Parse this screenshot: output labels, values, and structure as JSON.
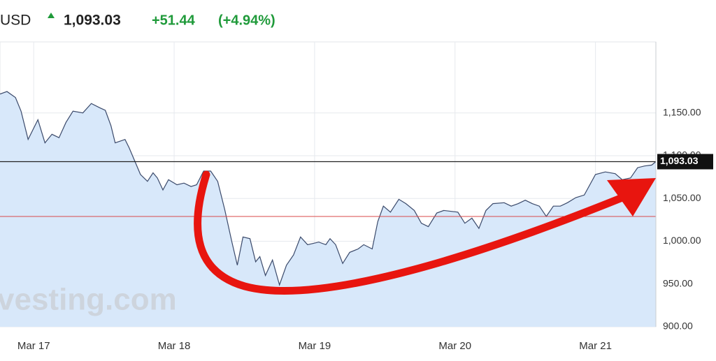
{
  "chart_data": {
    "type": "area",
    "title": "USD",
    "price": "1,093.03",
    "change": "+51.44",
    "change_pct": "(+4.94%)",
    "watermark": "vesting.com",
    "color": "#3b4a6b",
    "fill": "#d8e8fa",
    "x": [
      16.76,
      16.81,
      16.87,
      16.91,
      16.96,
      17.03,
      17.08,
      17.13,
      17.18,
      17.23,
      17.28,
      17.35,
      17.41,
      17.47,
      17.51,
      17.55,
      17.58,
      17.65,
      17.68,
      17.76,
      17.81,
      17.85,
      17.88,
      17.92,
      17.96,
      18.02,
      18.07,
      18.12,
      18.16,
      18.21,
      18.26,
      18.31,
      18.36,
      18.41,
      18.45,
      18.49,
      18.54,
      18.58,
      18.61,
      18.65,
      18.7,
      18.75,
      18.8,
      18.85,
      18.9,
      18.95,
      19.03,
      19.08,
      19.11,
      19.15,
      19.2,
      19.25,
      19.31,
      19.35,
      19.41,
      19.45,
      19.49,
      19.54,
      19.6,
      19.65,
      19.71,
      19.76,
      19.81,
      19.87,
      19.92,
      20.02,
      20.07,
      20.12,
      20.17,
      20.22,
      20.27,
      20.35,
      20.4,
      20.45,
      20.5,
      20.55,
      20.6,
      20.65,
      20.7,
      20.75,
      20.8,
      20.86,
      20.92,
      21.0,
      21.07,
      21.14,
      21.19,
      21.25,
      21.3,
      21.35,
      21.4,
      21.43
    ],
    "values": [
      1172,
      1175,
      1168,
      1152,
      1119,
      1142,
      1115,
      1125,
      1121,
      1139,
      1152,
      1150,
      1161,
      1156,
      1153,
      1135,
      1115,
      1119,
      1109,
      1078,
      1070,
      1080,
      1074,
      1060,
      1072,
      1066,
      1068,
      1064,
      1066,
      1082,
      1082,
      1070,
      1037,
      1000,
      972,
      1005,
      1003,
      976,
      982,
      960,
      978,
      949,
      972,
      984,
      1005,
      996,
      999,
      996,
      1003,
      996,
      974,
      987,
      991,
      996,
      991,
      1023,
      1041,
      1034,
      1049,
      1044,
      1036,
      1021,
      1017,
      1033,
      1036,
      1034,
      1021,
      1027,
      1015,
      1036,
      1044,
      1045,
      1041,
      1044,
      1048,
      1044,
      1041,
      1029,
      1041,
      1041,
      1045,
      1051,
      1054,
      1078,
      1081,
      1079,
      1072,
      1074,
      1086,
      1088,
      1089,
      1093.03
    ],
    "last_price": {
      "value": 1093.03,
      "label": "1,093.03"
    },
    "reference_line": 1029,
    "xlim": [
      16.76,
      21.43
    ],
    "ylim": [
      900,
      1233
    ],
    "xticks": [
      {
        "value": 17,
        "label": "Mar 17"
      },
      {
        "value": 18,
        "label": "Mar 18"
      },
      {
        "value": 19,
        "label": "Mar 19"
      },
      {
        "value": 20,
        "label": "Mar 20"
      },
      {
        "value": 21,
        "label": "Mar 21"
      }
    ],
    "yticks": [
      {
        "value": 900,
        "label": "900.00"
      },
      {
        "value": 950,
        "label": "950.00"
      },
      {
        "value": 1000,
        "label": "1,000.00"
      },
      {
        "value": 1050,
        "label": "1,050.00"
      },
      {
        "value": 1100,
        "label": "1,100.00"
      },
      {
        "value": 1150,
        "label": "1,150.00"
      }
    ],
    "grid": true
  }
}
